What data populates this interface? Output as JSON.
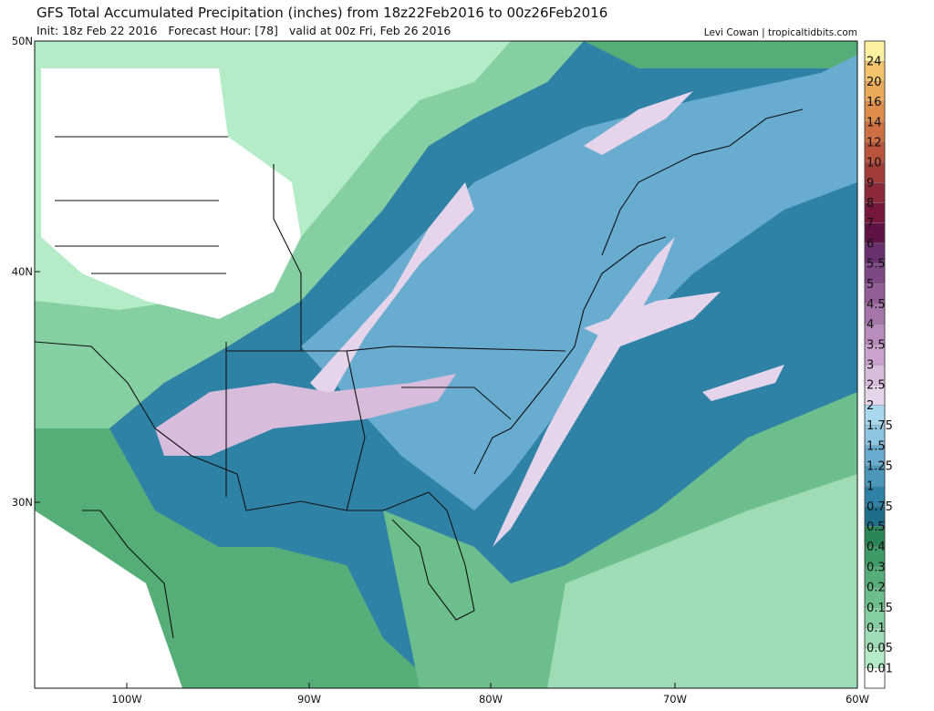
{
  "header": {
    "title": "GFS Total Accumulated Precipitation (inches) from 18z22Feb2016 to 00z26Feb2016",
    "init": "Init: 18z Feb 22 2016   Forecast Hour: [78]   valid at 00z Fri, Feb 26 2016",
    "credit": "Levi Cowan | tropicaltidbits.com"
  },
  "map": {
    "lat_labels": [
      "50N",
      "40N",
      "30N"
    ],
    "lon_labels": [
      "100W",
      "90W",
      "80W",
      "70W",
      "60W"
    ]
  },
  "colorbar": {
    "labels": [
      "0.01",
      "0.05",
      "0.1",
      "0.15",
      "0.2",
      "0.3",
      "0.4",
      "0.5",
      "0.75",
      "1",
      "1.25",
      "1.5",
      "1.75",
      "2",
      "2.5",
      "3",
      "3.5",
      "4",
      "4.5",
      "5",
      "5.5",
      "6",
      "7",
      "8",
      "9",
      "10",
      "12",
      "14",
      "16",
      "20",
      "24"
    ],
    "colors": [
      "#ffffff",
      "#b4ecc8",
      "#9fdcb6",
      "#86cfa2",
      "#6cbf8c",
      "#55ae78",
      "#3e9b66",
      "#2a8654",
      "#1d6e8a",
      "#2e82a6",
      "#4a97ba",
      "#68acd0",
      "#8cc4e2",
      "#a8d8ee",
      "#e6d4ea",
      "#d8bcdc",
      "#c9a3cc",
      "#b88cbb",
      "#a675aa",
      "#935e98",
      "#7e4884",
      "#6a2f6f",
      "#5e1344",
      "#76183c",
      "#8c2a3a",
      "#a33d3a",
      "#b9543c",
      "#cd6f42",
      "#de8d4c",
      "#eba95a",
      "#f4c46c",
      "#fdf0a0"
    ]
  }
}
